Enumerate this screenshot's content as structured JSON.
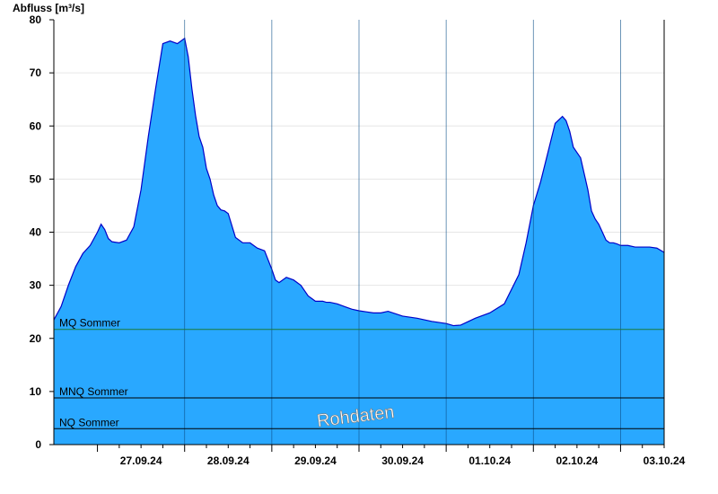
{
  "chart_data": {
    "type": "area",
    "title": "",
    "ylabel": "Abfluss [m³/s]",
    "xlabel": "",
    "ylim": [
      0,
      80
    ],
    "yticks": [
      "0",
      "10",
      "20",
      "30",
      "40",
      "50",
      "60",
      "70",
      "80"
    ],
    "date_labels": [
      "27.09.24",
      "28.09.24",
      "29.09.24",
      "30.09.24",
      "01.10.24",
      "02.10.24",
      "03.10.24"
    ],
    "x_unit": "hours since 27.09.24 00:00",
    "xlim": [
      -12,
      156
    ],
    "grid": true,
    "series": [
      {
        "name": "Abfluss",
        "fill": "#29a8ff",
        "stroke": "#0000c8",
        "x": [
          -12,
          -10,
          -8,
          -6,
          -4,
          -2,
          0,
          1,
          2,
          3,
          4,
          6,
          8,
          10,
          12,
          14,
          16,
          18,
          20,
          22,
          24,
          25,
          26,
          27,
          28,
          29,
          30,
          31,
          32,
          33,
          34,
          35,
          36,
          38,
          40,
          42,
          44,
          46,
          48,
          49,
          50,
          52,
          54,
          56,
          58,
          59,
          60,
          61,
          62,
          63,
          64,
          66,
          68,
          70,
          72,
          74,
          76,
          78,
          80,
          84,
          88,
          92,
          96,
          98,
          100,
          104,
          108,
          112,
          116,
          118,
          120,
          122,
          124,
          126,
          128,
          129,
          130,
          131,
          132,
          133,
          134,
          135,
          136,
          137,
          138,
          139,
          140,
          141,
          142,
          143,
          144,
          146,
          148,
          150,
          152,
          154,
          156
        ],
        "y": [
          23.5,
          26,
          30,
          33.5,
          36,
          37.5,
          40,
          41.5,
          40.5,
          38.8,
          38.2,
          38,
          38.5,
          41,
          48,
          58,
          67,
          75.5,
          76,
          75.5,
          76.5,
          73,
          67,
          62,
          58,
          56,
          52,
          50,
          47,
          45,
          44.2,
          44,
          43.5,
          39,
          38,
          38,
          37,
          36.5,
          33,
          31,
          30.5,
          31.5,
          31,
          30,
          28,
          27.5,
          27,
          27,
          27,
          26.8,
          26.8,
          26.5,
          26,
          25.5,
          25.2,
          25,
          24.8,
          24.8,
          25.1,
          24.2,
          23.8,
          23.2,
          22.8,
          22.4,
          22.5,
          23.8,
          24.8,
          26.5,
          32,
          38,
          45,
          49.5,
          55,
          60.5,
          61.8,
          61,
          59,
          56,
          55,
          54,
          51,
          48,
          44,
          42.5,
          41.5,
          40,
          38.5,
          38,
          38,
          37.8,
          37.5,
          37.5,
          37.2,
          37.2,
          37.2,
          37.0,
          36.2
        ]
      }
    ],
    "reference_lines": [
      {
        "label": "MQ Sommer",
        "value": 21.7,
        "color": "#1a7a3a"
      },
      {
        "label": "MNQ Sommer",
        "value": 8.8,
        "color": "#000000"
      },
      {
        "label": "NQ Sommer",
        "value": 3.0,
        "color": "#000000"
      }
    ]
  },
  "watermark": "Rohdaten"
}
